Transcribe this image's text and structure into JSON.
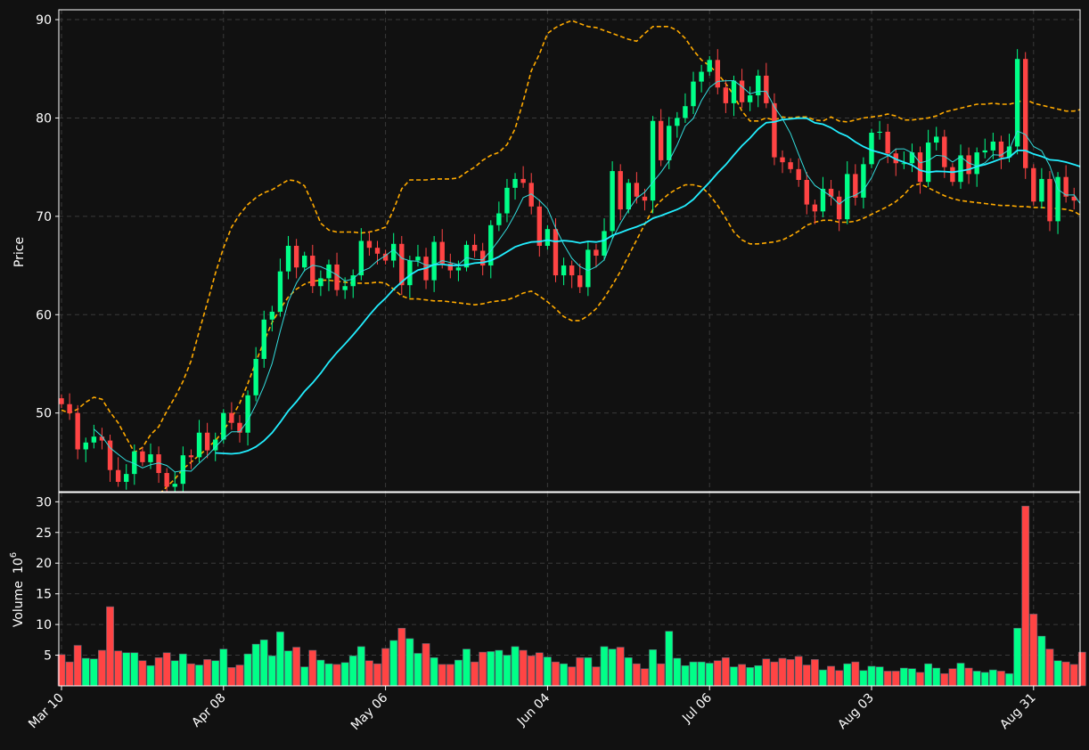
{
  "colors": {
    "background": "#111111",
    "axes_face": "#111111",
    "spine": "#ffffff",
    "grid": "#3a3a3a",
    "text": "#ffffff",
    "up": "#00ff88",
    "down": "#ff4444",
    "ma_fast": "#33dddd",
    "ma_slow": "#22eeff",
    "bollinger": "#ffaa00"
  },
  "chart_data": {
    "type": "candlestick",
    "panels": [
      "price",
      "volume"
    ],
    "price_axis": {
      "label": "Price",
      "ylim": [
        42,
        91
      ],
      "ticks": [
        50,
        60,
        70,
        80,
        90
      ],
      "tick_labels": [
        "50",
        "60",
        "70",
        "80",
        "90"
      ]
    },
    "volume_axis": {
      "label": "Volume",
      "multiplier": "10",
      "exponent": "6",
      "ylim": [
        0,
        31.5
      ],
      "ticks": [
        5,
        10,
        15,
        20,
        25,
        30
      ],
      "tick_labels": [
        "5",
        "10",
        "15",
        "20",
        "25",
        "30"
      ]
    },
    "x_ticks": [
      {
        "label": "Mar 10",
        "index": 0
      },
      {
        "label": "Apr 08",
        "index": 20
      },
      {
        "label": "May 06",
        "index": 40
      },
      {
        "label": "Jun 04",
        "index": 60
      },
      {
        "label": "Jul 06",
        "index": 80
      },
      {
        "label": "Aug 03",
        "index": 100
      },
      {
        "label": "Aug 31",
        "index": 120
      }
    ],
    "bar_count": 127,
    "grid": true,
    "series": [
      {
        "kind": "ohlc"
      },
      {
        "kind": "moving_average",
        "period": 5
      },
      {
        "kind": "moving_average",
        "period": 20
      },
      {
        "kind": "bollinger_band",
        "period": 20
      }
    ],
    "closes": [
      50.9,
      50.0,
      46.3,
      47.0,
      47.6,
      47.2,
      44.2,
      43.0,
      43.8,
      46.1,
      45.0,
      45.8,
      43.9,
      42.5,
      42.8,
      45.7,
      45.5,
      48.0,
      46.2,
      47.3,
      50.0,
      49.0,
      48.0,
      51.8,
      55.5,
      59.5,
      60.3,
      64.4,
      67.0,
      64.8,
      66.0,
      62.9,
      63.7,
      65.1,
      62.5,
      62.9,
      64.0,
      67.5,
      66.8,
      66.2,
      65.5,
      67.2,
      63.0,
      65.5,
      65.9,
      63.5,
      67.4,
      65.2,
      64.5,
      64.8,
      67.1,
      66.5,
      65.0,
      69.1,
      70.3,
      72.9,
      73.8,
      73.4,
      71.0,
      67.0,
      68.7,
      64.0,
      65.0,
      64.0,
      62.8,
      66.6,
      66.0,
      68.5,
      74.6,
      70.7,
      73.4,
      72.0,
      71.6,
      79.7,
      75.7,
      79.2,
      80.0,
      81.2,
      83.7,
      84.7,
      85.9,
      83.1,
      81.5,
      83.8,
      81.6,
      82.3,
      84.3,
      81.5,
      76.0,
      75.5,
      74.8,
      73.7,
      71.2,
      70.5,
      72.8,
      72.0,
      69.7,
      74.3,
      71.9,
      75.3,
      78.5,
      78.6,
      76.4,
      75.4,
      75.4,
      76.5,
      73.5,
      77.5,
      78.1,
      75.0,
      73.5,
      76.2,
      74.3,
      76.5,
      76.7,
      77.6,
      76.0,
      77.1,
      86.0,
      74.9,
      71.5,
      73.8,
      69.5,
      74.0,
      72.0,
      71.6,
      67.9
    ],
    "volumes": [
      5.1,
      3.9,
      6.6,
      4.5,
      4.4,
      5.8,
      12.9,
      5.7,
      5.4,
      5.4,
      4.1,
      3.3,
      4.6,
      5.4,
      4.1,
      5.2,
      3.6,
      3.4,
      4.3,
      4.1,
      6.0,
      3.0,
      3.4,
      5.2,
      6.8,
      7.5,
      4.9,
      8.8,
      5.7,
      6.3,
      3.1,
      5.8,
      4.2,
      3.6,
      3.5,
      3.8,
      4.9,
      6.4,
      4.1,
      3.6,
      6.1,
      7.4,
      9.4,
      7.7,
      5.3,
      6.9,
      4.6,
      3.5,
      3.5,
      4.2,
      6.0,
      3.9,
      5.5,
      5.6,
      5.8,
      5.0,
      6.4,
      5.8,
      4.9,
      5.4,
      4.7,
      3.9,
      3.6,
      3.1,
      4.6,
      4.6,
      3.1,
      6.4,
      6.0,
      6.3,
      4.6,
      3.6,
      2.8,
      5.9,
      3.6,
      8.9,
      4.5,
      3.3,
      3.9,
      3.9,
      3.7,
      4.1,
      4.6,
      3.1,
      3.5,
      3.0,
      3.3,
      4.4,
      3.9,
      4.5,
      4.3,
      4.8,
      3.4,
      4.3,
      2.6,
      3.2,
      2.5,
      3.6,
      3.9,
      2.5,
      3.2,
      3.1,
      2.4,
      2.4,
      2.9,
      2.8,
      2.2,
      3.6,
      2.9,
      2.0,
      2.8,
      3.7,
      2.9,
      2.4,
      2.2,
      2.6,
      2.4,
      2.0,
      9.4,
      29.3,
      11.7,
      8.1,
      6.0,
      4.1,
      3.9,
      3.5,
      5.5
    ],
    "upper_band": [
      50.3,
      50.0,
      50.4,
      51.1,
      51.6,
      51.4,
      50.1,
      49.0,
      47.5,
      46.0,
      46.5,
      47.8,
      48.6,
      50.2,
      51.6,
      53.2,
      55.3,
      58.3,
      61.2,
      64.2,
      66.8,
      68.9,
      70.2,
      71.2,
      71.9,
      72.4,
      72.7,
      73.2,
      73.7,
      73.6,
      73.1,
      71.3,
      69.3,
      68.6,
      68.4,
      68.4,
      68.4,
      68.3,
      68.4,
      68.6,
      68.9,
      70.7,
      72.8,
      73.7,
      73.7,
      73.7,
      73.8,
      73.8,
      73.8,
      73.9,
      74.5,
      75.0,
      75.7,
      76.2,
      76.5,
      77.3,
      78.9,
      81.7,
      84.8,
      86.5,
      88.6,
      89.2,
      89.6,
      89.9,
      89.6,
      89.3,
      89.2,
      88.9,
      88.6,
      88.3,
      88.0,
      87.8,
      88.6,
      89.3,
      89.3,
      89.3,
      88.9,
      88.1,
      86.9,
      85.9,
      85.3,
      84.5,
      83.5,
      82.3,
      80.7,
      79.7,
      79.7,
      80.0,
      79.8,
      80.1,
      80.0,
      80.1,
      80.1,
      79.8,
      79.7,
      80.1,
      79.7,
      79.6,
      79.8,
      80.0,
      80.1,
      80.2,
      80.4,
      80.2,
      79.8,
      79.8,
      79.9,
      80.0,
      80.2,
      80.6,
      80.8,
      81.0,
      81.2,
      81.4,
      81.4,
      81.5,
      81.4,
      81.4,
      81.6,
      81.9,
      81.5,
      81.3,
      81.1,
      80.9,
      80.7,
      80.7,
      80.9
    ],
    "lower_band": [
      41.5,
      41.0,
      40.5,
      39.9,
      39.5,
      39.0,
      38.9,
      38.9,
      39.5,
      40.0,
      40.5,
      41.0,
      41.7,
      42.5,
      43.3,
      44.3,
      45.0,
      45.7,
      46.4,
      47.2,
      48.2,
      49.5,
      51.0,
      53.0,
      55.2,
      57.3,
      59.2,
      60.6,
      61.8,
      62.6,
      63.1,
      63.4,
      63.5,
      63.5,
      63.4,
      63.3,
      63.2,
      63.2,
      63.2,
      63.3,
      63.2,
      62.6,
      61.9,
      61.6,
      61.6,
      61.5,
      61.4,
      61.4,
      61.3,
      61.2,
      61.1,
      61.0,
      61.1,
      61.3,
      61.4,
      61.5,
      61.8,
      62.2,
      62.4,
      61.9,
      61.3,
      60.6,
      59.8,
      59.4,
      59.4,
      59.9,
      60.6,
      61.7,
      63.0,
      64.4,
      66.0,
      67.6,
      69.2,
      70.7,
      71.6,
      72.3,
      72.8,
      73.2,
      73.2,
      73.0,
      72.2,
      71.1,
      69.8,
      68.4,
      67.6,
      67.2,
      67.2,
      67.3,
      67.4,
      67.6,
      68.0,
      68.5,
      69.1,
      69.4,
      69.6,
      69.6,
      69.4,
      69.4,
      69.5,
      69.8,
      70.2,
      70.6,
      71.0,
      71.5,
      72.2,
      73.1,
      73.3,
      72.9,
      72.5,
      72.1,
      71.8,
      71.6,
      71.5,
      71.4,
      71.3,
      71.2,
      71.1,
      71.1,
      71.0,
      71.0,
      70.9,
      70.9,
      70.8,
      70.8,
      70.7,
      70.5,
      70.0
    ]
  }
}
